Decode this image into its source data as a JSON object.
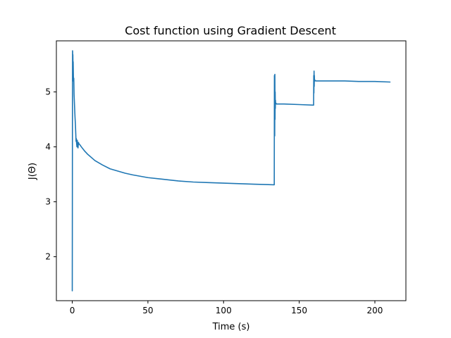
{
  "chart_data": {
    "type": "line",
    "title": "Cost function using Gradient Descent",
    "xlabel": "Time (s)",
    "ylabel": "J(Θ)",
    "xlim": [
      -10.5,
      220.5
    ],
    "ylim": [
      1.2,
      5.93
    ],
    "xticks": [
      0,
      50,
      100,
      150,
      200
    ],
    "yticks": [
      2,
      3,
      4,
      5
    ],
    "grid": false,
    "legend": "none",
    "colors": {
      "series": "#1f77b4"
    },
    "series": [
      {
        "x": [
          0.0,
          0.05,
          0.1,
          0.15,
          0.2,
          0.25,
          0.3,
          0.35,
          0.4,
          0.5,
          0.6,
          0.8,
          1.0,
          1.2,
          1.5,
          1.8,
          2.1,
          2.3,
          2.5,
          2.7,
          2.9,
          3.1,
          3.3,
          3.5,
          3.8,
          4.1,
          4.5,
          5,
          6,
          8,
          10,
          15,
          20,
          25,
          30,
          35,
          40,
          50,
          60,
          70,
          80,
          90,
          100,
          110,
          120,
          133.5,
          133.6,
          133.7,
          133.8,
          133.9,
          134.0,
          134.1,
          134.2,
          134.3,
          134.4,
          134.5,
          134.7,
          135.0,
          140,
          150,
          159.5,
          159.6,
          159.7,
          159.8,
          159.9,
          160.0,
          160.1,
          160.2,
          160.3,
          160.5,
          161,
          170,
          180,
          190,
          200,
          210
        ],
        "y": [
          1.38,
          2.5,
          4.0,
          5.2,
          5.75,
          5.72,
          5.3,
          5.62,
          5.68,
          5.45,
          5.55,
          5.2,
          5.25,
          4.95,
          4.75,
          4.55,
          4.4,
          4.25,
          4.1,
          4.15,
          4.05,
          4.0,
          4.12,
          4.05,
          3.98,
          4.08,
          4.05,
          4.04,
          4.0,
          3.93,
          3.87,
          3.75,
          3.67,
          3.6,
          3.56,
          3.52,
          3.49,
          3.44,
          3.41,
          3.38,
          3.36,
          3.35,
          3.34,
          3.33,
          3.32,
          3.31,
          5.3,
          5.1,
          4.2,
          5.32,
          4.5,
          5.0,
          4.7,
          4.85,
          4.78,
          4.8,
          4.79,
          4.78,
          4.78,
          4.77,
          4.76,
          5.3,
          4.98,
          5.38,
          5.1,
          5.3,
          5.2,
          5.22,
          5.2,
          5.21,
          5.2,
          5.2,
          5.2,
          5.19,
          5.19,
          5.18
        ]
      }
    ]
  }
}
